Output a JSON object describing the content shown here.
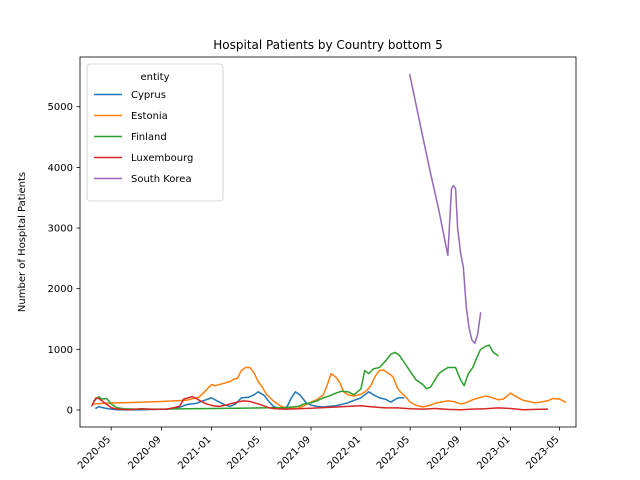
{
  "chart_data": {
    "type": "line",
    "title": "Hospital Patients by Country bottom 5",
    "xlabel": "",
    "ylabel": "Number of Hospital Patients",
    "legend": {
      "title": "entity",
      "placement": "top-left"
    },
    "grid": false,
    "xlim": [
      "2020-02-15",
      "2023-06-10"
    ],
    "ylim": [
      -280,
      5820
    ],
    "x_ticks": [
      "2020-05",
      "2020-09",
      "2021-01",
      "2021-05",
      "2021-09",
      "2022-01",
      "2022-05",
      "2022-09",
      "2023-01",
      "2023-05"
    ],
    "y_ticks": [
      0,
      1000,
      2000,
      3000,
      4000,
      5000
    ],
    "series": [
      {
        "name": "Cyprus",
        "color": "#1f77b4",
        "x": [
          "2020-03-25",
          "2020-04-01",
          "2020-04-10",
          "2020-04-25",
          "2020-05-15",
          "2020-06-15",
          "2020-07-15",
          "2020-08-15",
          "2020-09-15",
          "2020-10-15",
          "2020-10-25",
          "2020-11-05",
          "2020-11-25",
          "2020-12-15",
          "2021-01-01",
          "2021-01-15",
          "2021-02-01",
          "2021-02-15",
          "2021-03-01",
          "2021-03-15",
          "2021-04-01",
          "2021-04-15",
          "2021-04-25",
          "2021-05-10",
          "2021-05-20",
          "2021-06-01",
          "2021-06-15",
          "2021-06-25",
          "2021-07-05",
          "2021-07-15",
          "2021-07-25",
          "2021-08-05",
          "2021-08-20",
          "2021-09-01",
          "2021-09-15",
          "2021-10-01",
          "2021-10-15",
          "2021-11-01",
          "2021-11-20",
          "2021-12-01",
          "2021-12-15",
          "2022-01-01",
          "2022-01-10",
          "2022-01-20",
          "2022-02-01",
          "2022-02-15",
          "2022-03-01",
          "2022-03-15",
          "2022-04-01",
          "2022-04-15"
        ],
        "values": [
          30,
          55,
          40,
          20,
          5,
          3,
          5,
          10,
          15,
          45,
          70,
          95,
          110,
          160,
          200,
          150,
          90,
          60,
          100,
          200,
          210,
          250,
          300,
          240,
          150,
          60,
          30,
          20,
          60,
          200,
          300,
          250,
          120,
          80,
          60,
          50,
          60,
          70,
          100,
          120,
          160,
          200,
          250,
          300,
          250,
          200,
          180,
          130,
          200,
          200
        ]
      },
      {
        "name": "Estonia",
        "color": "#ff7f0e",
        "x": [
          "2020-03-20",
          "2020-04-01",
          "2020-04-15",
          "2020-05-01",
          "2020-07-01",
          "2020-09-01",
          "2020-11-01",
          "2020-12-01",
          "2020-12-15",
          "2021-01-01",
          "2021-01-10",
          "2021-01-20",
          "2021-02-01",
          "2021-02-15",
          "2021-02-25",
          "2021-03-05",
          "2021-03-15",
          "2021-03-25",
          "2021-04-05",
          "2021-04-15",
          "2021-04-25",
          "2021-05-05",
          "2021-05-15",
          "2021-06-01",
          "2021-06-15",
          "2021-07-01",
          "2021-07-15",
          "2021-08-01",
          "2021-08-15",
          "2021-09-01",
          "2021-09-15",
          "2021-10-01",
          "2021-10-10",
          "2021-10-20",
          "2021-11-01",
          "2021-11-10",
          "2021-11-20",
          "2021-12-01",
          "2021-12-15",
          "2022-01-01",
          "2022-01-15",
          "2022-01-25",
          "2022-02-05",
          "2022-02-15",
          "2022-02-25",
          "2022-03-10",
          "2022-03-20",
          "2022-04-01",
          "2022-04-10",
          "2022-04-20",
          "2022-05-01",
          "2022-05-15",
          "2022-06-01",
          "2022-06-20",
          "2022-07-01",
          "2022-07-15",
          "2022-08-01",
          "2022-08-15",
          "2022-09-01",
          "2022-09-15",
          "2022-10-01",
          "2022-10-15",
          "2022-11-01",
          "2022-11-15",
          "2022-12-01",
          "2022-12-15",
          "2023-01-01",
          "2023-01-15",
          "2023-02-01",
          "2023-02-15",
          "2023-03-01",
          "2023-03-15",
          "2023-04-01",
          "2023-04-15",
          "2023-05-01",
          "2023-05-15"
        ],
        "values": [
          100,
          105,
          110,
          115,
          125,
          140,
          160,
          210,
          300,
          420,
          400,
          420,
          440,
          470,
          510,
          520,
          650,
          700,
          700,
          610,
          470,
          380,
          260,
          150,
          80,
          35,
          25,
          30,
          70,
          130,
          170,
          250,
          400,
          600,
          540,
          450,
          300,
          250,
          230,
          260,
          320,
          400,
          560,
          650,
          660,
          600,
          550,
          350,
          280,
          220,
          130,
          80,
          50,
          80,
          110,
          130,
          150,
          140,
          100,
          120,
          170,
          200,
          230,
          210,
          170,
          180,
          280,
          220,
          160,
          140,
          120,
          130,
          150,
          190,
          180,
          130
        ]
      },
      {
        "name": "Finland",
        "color": "#2ca02c",
        "x": [
          "2020-03-20",
          "2020-04-01",
          "2020-04-08",
          "2020-04-20",
          "2020-05-01",
          "2020-05-15",
          "2020-06-01",
          "2020-07-01",
          "2020-09-01",
          "2020-11-01",
          "2021-01-01",
          "2021-03-01",
          "2021-05-01",
          "2021-07-01",
          "2021-08-01",
          "2021-08-15",
          "2021-09-01",
          "2021-09-15",
          "2021-10-01",
          "2021-10-15",
          "2021-11-01",
          "2021-11-15",
          "2021-12-01",
          "2021-12-15",
          "2022-01-01",
          "2022-01-10",
          "2022-01-20",
          "2022-02-01",
          "2022-02-15",
          "2022-03-01",
          "2022-03-15",
          "2022-03-25",
          "2022-04-05",
          "2022-04-15",
          "2022-04-25",
          "2022-05-05",
          "2022-05-15",
          "2022-06-01",
          "2022-06-10",
          "2022-06-20",
          "2022-07-01",
          "2022-07-10",
          "2022-07-20",
          "2022-08-01",
          "2022-08-10",
          "2022-08-20",
          "2022-09-01",
          "2022-09-10",
          "2022-09-20",
          "2022-10-01",
          "2022-10-10",
          "2022-10-20",
          "2022-11-01",
          "2022-11-10",
          "2022-11-20",
          "2022-12-01"
        ],
        "values": [
          150,
          220,
          180,
          190,
          100,
          40,
          20,
          15,
          15,
          20,
          25,
          30,
          35,
          40,
          60,
          100,
          120,
          150,
          200,
          230,
          280,
          310,
          300,
          250,
          350,
          650,
          600,
          680,
          700,
          800,
          920,
          950,
          900,
          800,
          700,
          600,
          500,
          420,
          350,
          380,
          500,
          600,
          650,
          700,
          700,
          700,
          500,
          400,
          600,
          700,
          850,
          1000,
          1050,
          1070,
          950,
          900
        ]
      },
      {
        "name": "Luxembourg",
        "color": "#d62728",
        "x": [
          "2020-03-15",
          "2020-03-25",
          "2020-04-01",
          "2020-04-15",
          "2020-05-01",
          "2020-05-15",
          "2020-06-15",
          "2020-07-15",
          "2020-08-15",
          "2020-09-15",
          "2020-10-15",
          "2020-10-25",
          "2020-11-05",
          "2020-11-15",
          "2020-11-25",
          "2020-12-05",
          "2020-12-20",
          "2021-01-05",
          "2021-01-20",
          "2021-02-05",
          "2021-02-20",
          "2021-03-05",
          "2021-03-20",
          "2021-04-05",
          "2021-04-20",
          "2021-05-05",
          "2021-05-20",
          "2021-06-05",
          "2021-07-01",
          "2021-08-01",
          "2021-09-01",
          "2021-10-01",
          "2021-11-01",
          "2021-12-01",
          "2022-01-01",
          "2022-02-01",
          "2022-03-01",
          "2022-04-01",
          "2022-05-01",
          "2022-06-01",
          "2022-07-01",
          "2022-08-01",
          "2022-09-01",
          "2022-10-01",
          "2022-11-01",
          "2022-12-01",
          "2023-01-01",
          "2023-02-01",
          "2023-03-01",
          "2023-04-01"
        ],
        "values": [
          70,
          200,
          190,
          120,
          40,
          15,
          5,
          20,
          10,
          15,
          60,
          180,
          200,
          220,
          190,
          150,
          100,
          70,
          60,
          80,
          110,
          130,
          150,
          140,
          110,
          80,
          40,
          20,
          15,
          20,
          30,
          40,
          50,
          60,
          70,
          50,
          35,
          35,
          20,
          15,
          25,
          10,
          5,
          15,
          20,
          35,
          25,
          5,
          10,
          15
        ]
      },
      {
        "name": "South Korea",
        "color": "#9467bd",
        "x": [
          "2022-04-30",
          "2022-05-15",
          "2022-06-01",
          "2022-06-20",
          "2022-07-10",
          "2022-08-01",
          "2022-08-10",
          "2022-08-15",
          "2022-08-20",
          "2022-08-25",
          "2022-09-01",
          "2022-09-08",
          "2022-09-15",
          "2022-09-22",
          "2022-09-29",
          "2022-10-06",
          "2022-10-13",
          "2022-10-20"
        ],
        "values": [
          5530,
          5050,
          4500,
          3900,
          3300,
          2550,
          3650,
          3700,
          3650,
          3000,
          2600,
          2350,
          1700,
          1350,
          1150,
          1100,
          1250,
          1600
        ]
      }
    ]
  }
}
